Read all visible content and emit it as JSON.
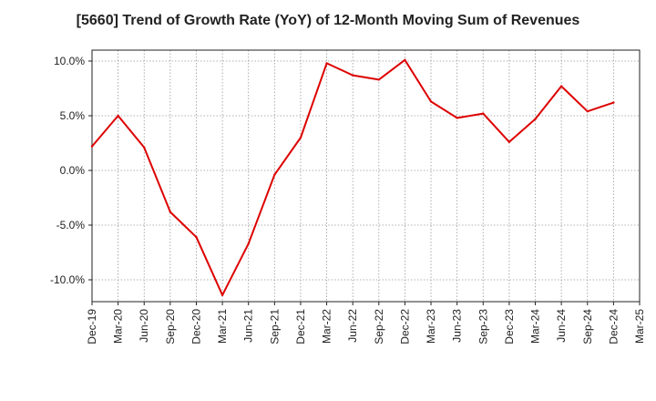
{
  "chart_data": {
    "type": "line",
    "title": "[5660]  Trend of Growth Rate (YoY) of 12-Month Moving Sum of Revenues",
    "xlabel": "",
    "ylabel": "",
    "ylim": [
      -12,
      11
    ],
    "y_ticks": [
      10,
      5,
      0,
      -5,
      -10
    ],
    "y_tick_labels": [
      "10.0%",
      "5.0%",
      "0.0%",
      "-5.0%",
      "-10.0%"
    ],
    "x_tick_labels": [
      "Dec-19",
      "Mar-20",
      "Jun-20",
      "Sep-20",
      "Dec-20",
      "Mar-21",
      "Jun-21",
      "Sep-21",
      "Dec-21",
      "Mar-22",
      "Jun-22",
      "Sep-22",
      "Dec-22",
      "Mar-23",
      "Jun-23",
      "Sep-23",
      "Dec-23",
      "Mar-24",
      "Jun-24",
      "Sep-24",
      "Dec-24",
      "Mar-25"
    ],
    "grid": true,
    "series": [
      {
        "color": "#dd0000",
        "x": [
          "Dec-19",
          "Mar-20",
          "Jun-20",
          "Sep-20",
          "Dec-20",
          "Mar-21",
          "Jun-21",
          "Sep-21",
          "Dec-21",
          "Mar-22",
          "Jun-22",
          "Sep-22",
          "Dec-22",
          "Mar-23",
          "Jun-23",
          "Sep-23",
          "Dec-23",
          "Mar-24",
          "Jun-24",
          "Sep-24",
          "Dec-24"
        ],
        "values": [
          2.2,
          5.0,
          2.1,
          -3.8,
          -6.1,
          -11.4,
          -6.7,
          -0.4,
          3.0,
          9.8,
          8.7,
          8.3,
          10.1,
          6.3,
          4.8,
          5.2,
          2.6,
          4.7,
          7.7,
          5.4,
          6.2
        ]
      }
    ]
  }
}
